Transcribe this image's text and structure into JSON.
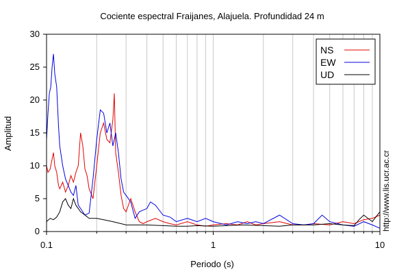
{
  "chart_data": {
    "type": "line",
    "title": "Cociente espectral Fraijanes, Alajuela. Profundidad 24 m",
    "xlabel": "Periodo (s)",
    "ylabel": "Amplitud",
    "xscale": "log",
    "xlim": [
      0.1,
      10
    ],
    "ylim": [
      0,
      30
    ],
    "x_ticks": [
      0.1,
      1,
      10
    ],
    "x_tick_labels": [
      "0.1",
      "1",
      "10"
    ],
    "y_ticks": [
      0,
      5,
      10,
      15,
      20,
      25,
      30
    ],
    "y_tick_labels": [
      "0",
      "5",
      "10",
      "15",
      "20",
      "25",
      "30"
    ],
    "grid": "vertical minor and major lines on x",
    "legend_position": "top-right",
    "series": [
      {
        "name": "NS",
        "color": "#e00000",
        "x": [
          0.1,
          0.102,
          0.105,
          0.108,
          0.11,
          0.112,
          0.115,
          0.118,
          0.12,
          0.125,
          0.13,
          0.135,
          0.14,
          0.145,
          0.15,
          0.155,
          0.16,
          0.165,
          0.17,
          0.175,
          0.18,
          0.19,
          0.2,
          0.21,
          0.22,
          0.23,
          0.24,
          0.25,
          0.255,
          0.26,
          0.27,
          0.28,
          0.29,
          0.3,
          0.32,
          0.34,
          0.36,
          0.38,
          0.4,
          0.45,
          0.5,
          0.55,
          0.6,
          0.7,
          0.8,
          0.9,
          1.0,
          1.2,
          1.4,
          1.6,
          1.8,
          2.0,
          2.5,
          3.0,
          3.5,
          4.0,
          5.0,
          6.0,
          7.0,
          8.0,
          9.0,
          10.0
        ],
        "y": [
          10,
          9,
          9.5,
          11,
          12,
          10,
          9,
          7,
          6.5,
          7.5,
          6,
          7,
          8.5,
          7.5,
          9,
          10,
          15,
          13,
          9.5,
          8.5,
          6.5,
          5,
          10,
          15,
          16.5,
          14,
          13.5,
          17,
          21,
          12,
          9,
          5.5,
          3.5,
          3,
          5,
          3,
          1.5,
          1.2,
          1.5,
          2,
          1.5,
          1.2,
          1,
          1.5,
          1,
          0.8,
          1,
          1.2,
          1,
          1.5,
          1,
          1.2,
          1.5,
          1,
          1,
          1.2,
          1,
          1.5,
          1.2,
          1.8,
          2,
          2.5
        ]
      },
      {
        "name": "EW",
        "color": "#0000e0",
        "x": [
          0.1,
          0.102,
          0.104,
          0.106,
          0.108,
          0.11,
          0.112,
          0.115,
          0.118,
          0.12,
          0.125,
          0.13,
          0.135,
          0.14,
          0.145,
          0.15,
          0.155,
          0.16,
          0.17,
          0.18,
          0.19,
          0.2,
          0.21,
          0.22,
          0.23,
          0.24,
          0.25,
          0.26,
          0.27,
          0.28,
          0.29,
          0.3,
          0.32,
          0.34,
          0.36,
          0.4,
          0.42,
          0.45,
          0.5,
          0.55,
          0.6,
          0.7,
          0.8,
          0.9,
          1.0,
          1.2,
          1.4,
          1.6,
          1.8,
          2.0,
          2.5,
          3.0,
          3.5,
          4.0,
          4.5,
          5.0,
          6.0,
          7.0,
          8.0,
          9.0,
          10.0
        ],
        "y": [
          14,
          18,
          21,
          22,
          25,
          27,
          24,
          22,
          16,
          13,
          10,
          8,
          7,
          6,
          5.5,
          7,
          4,
          3.5,
          2.5,
          2.8,
          8,
          14,
          18.5,
          18,
          15,
          16.5,
          13,
          15,
          12,
          8,
          6,
          5.5,
          4.5,
          2,
          3,
          3.5,
          4.5,
          4,
          2.5,
          2.2,
          1.5,
          2,
          1.5,
          2,
          1.5,
          1,
          1.5,
          1.2,
          1.5,
          1.2,
          2.5,
          1.2,
          1,
          1.2,
          2.5,
          1.5,
          1,
          0.8,
          1.5,
          1,
          0.5
        ]
      },
      {
        "name": "UD",
        "color": "#000000",
        "x": [
          0.1,
          0.105,
          0.11,
          0.115,
          0.12,
          0.125,
          0.13,
          0.135,
          0.14,
          0.145,
          0.15,
          0.16,
          0.17,
          0.18,
          0.2,
          0.22,
          0.25,
          0.28,
          0.3,
          0.35,
          0.4,
          0.5,
          0.6,
          0.7,
          0.8,
          1.0,
          1.2,
          1.5,
          2.0,
          2.5,
          3.0,
          4.0,
          5.0,
          6.0,
          7.0,
          7.5,
          8.0,
          9.0,
          10.0
        ],
        "y": [
          1.5,
          2,
          1.8,
          2.2,
          3,
          4.5,
          5,
          4,
          3.5,
          5,
          4,
          3,
          2.5,
          2,
          2,
          1.8,
          1.5,
          1.2,
          1,
          1,
          1,
          0.9,
          0.8,
          0.8,
          0.9,
          0.8,
          0.9,
          1,
          0.9,
          0.8,
          1,
          1,
          1.2,
          1,
          0.9,
          1.8,
          2.5,
          1.5,
          3
        ]
      }
    ],
    "annotation": "http://www.lis.ucr.ac.cr"
  }
}
